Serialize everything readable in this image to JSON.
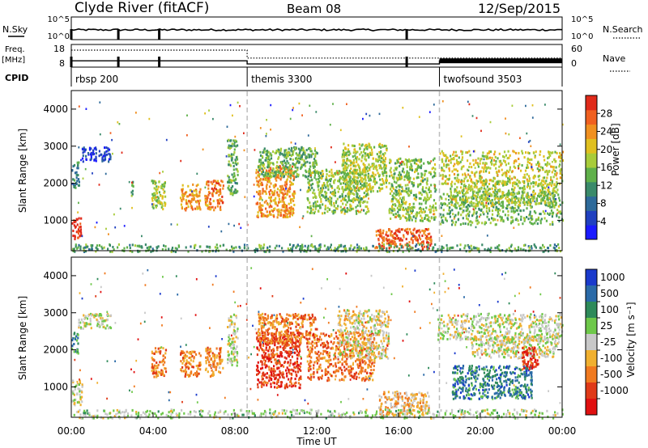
{
  "header": {
    "station": "Clyde River (fitACF)",
    "beam": "Beam 08",
    "date": "12/Sep/2015"
  },
  "chart_data": [
    {
      "type": "line",
      "panel": "noise",
      "labels": {
        "left": "N.Sky",
        "right": "N.Search",
        "left_ticks": [
          "10^5",
          "10^0"
        ],
        "right_ticks": [
          "10^5",
          "10^0"
        ]
      },
      "series": [
        {
          "name": "N.Sky",
          "style": "solid",
          "value": "10^0 – 10^5 (log)"
        },
        {
          "name": "N.Search",
          "style": "dotted"
        }
      ],
      "drops_at_hours": [
        0.0,
        2.3,
        4.3,
        16.4
      ]
    },
    {
      "type": "line",
      "panel": "frequency",
      "labels": {
        "left_top": "Freq.",
        "left_unit": "[MHz]",
        "right": "Nave",
        "left_ticks": [
          18,
          8
        ],
        "right_ticks": [
          60,
          0
        ]
      },
      "series": [
        {
          "name": "Freq.",
          "style": "solid",
          "x_hours": [
            0,
            8.6,
            8.6,
            18.0,
            18.0,
            24
          ],
          "y_mhz": [
            10.8,
            10.8,
            9.4,
            9.4,
            10.8,
            10.8
          ]
        },
        {
          "name": "Nave",
          "style": "dotted",
          "x_hours": [
            0,
            8.6,
            8.6,
            24
          ],
          "y_nave": [
            45,
            45,
            24,
            24
          ]
        }
      ]
    },
    {
      "type": "table",
      "panel": "cpid",
      "label": "CPID",
      "programs": [
        {
          "name": "rbsp 200",
          "start_hours": 0.0,
          "end_hours": 8.6
        },
        {
          "name": "themis 3300",
          "start_hours": 8.6,
          "end_hours": 18.0
        },
        {
          "name": "twofsound 3503",
          "start_hours": 18.0,
          "end_hours": 24.0
        }
      ]
    },
    {
      "type": "heatmap",
      "panel": "power",
      "ylabel": "Slant Range [km]",
      "ylim": [
        180,
        4500
      ],
      "yticks": [
        1000,
        2000,
        3000,
        4000
      ],
      "colorbar": {
        "label": "Power [dB]",
        "range": [
          0,
          32
        ],
        "ticks": [
          4,
          8,
          12,
          16,
          20,
          24,
          28
        ],
        "colors": [
          "#1a1aff",
          "#2040c0",
          "#2e6a9a",
          "#3a8a6a",
          "#5fb04a",
          "#a8cc3a",
          "#e0c020",
          "#f09020",
          "#f06020",
          "#e02a1a"
        ]
      },
      "vertical_marks_hours": [
        8.6,
        18.0
      ],
      "regions": [
        {
          "x": [
            0.0,
            0.45
          ],
          "y": [
            500,
            1100
          ],
          "level": 0.95
        },
        {
          "x": [
            0.5,
            1.9
          ],
          "y": [
            2600,
            3000
          ],
          "level": 0.15
        },
        {
          "x": [
            0.0,
            0.35
          ],
          "y": [
            1900,
            2600
          ],
          "level": 0.3
        },
        {
          "x": [
            2.9,
            3.0
          ],
          "y": [
            1500,
            2100
          ],
          "level": 0.4
        },
        {
          "x": [
            3.9,
            4.6
          ],
          "y": [
            1300,
            2100
          ],
          "level": 0.55
        },
        {
          "x": [
            5.3,
            6.3
          ],
          "y": [
            1300,
            2000
          ],
          "level": 0.75
        },
        {
          "x": [
            6.5,
            7.4
          ],
          "y": [
            1300,
            2100
          ],
          "level": 0.8
        },
        {
          "x": [
            7.6,
            8.1
          ],
          "y": [
            1700,
            3200
          ],
          "level": 0.45
        },
        {
          "x": [
            9.0,
            10.9
          ],
          "y": [
            1100,
            2500
          ],
          "level": 0.75
        },
        {
          "x": [
            9.1,
            12.0
          ],
          "y": [
            2200,
            3000
          ],
          "level": 0.45
        },
        {
          "x": [
            11.5,
            14.5
          ],
          "y": [
            1200,
            2400
          ],
          "level": 0.5
        },
        {
          "x": [
            13.2,
            15.4
          ],
          "y": [
            1800,
            3100
          ],
          "level": 0.55
        },
        {
          "x": [
            14.8,
            17.6
          ],
          "y": [
            250,
            800
          ],
          "level": 0.85
        },
        {
          "x": [
            15.5,
            17.8
          ],
          "y": [
            1000,
            2700
          ],
          "level": 0.5
        },
        {
          "x": [
            18.0,
            24.0
          ],
          "y": [
            2000,
            2900
          ],
          "level": 0.6
        },
        {
          "x": [
            18.0,
            24.0
          ],
          "y": [
            900,
            1800
          ],
          "level": 0.45
        },
        {
          "x": [
            18.5,
            23.8
          ],
          "y": [
            1400,
            2100
          ],
          "level": 0.55
        },
        {
          "x": [
            0.0,
            24.0
          ],
          "y": [
            180,
            380
          ],
          "level": 0.4
        }
      ]
    },
    {
      "type": "heatmap",
      "panel": "velocity",
      "xlabel": "Time UT",
      "ylabel": "Slant Range [km]",
      "ylim": [
        180,
        4500
      ],
      "yticks": [
        1000,
        2000,
        3000,
        4000
      ],
      "xticks": [
        "00:00",
        "04:00",
        "08:00",
        "12:00",
        "16:00",
        "20:00",
        "00:00"
      ],
      "colorbar": {
        "label": "Velocity [m s⁻¹]",
        "levels": [
          "1000",
          "500",
          "100",
          "25",
          "-25",
          "-100",
          "-500",
          "-1000"
        ],
        "colors": [
          "#1a3acc",
          "#2a6aa8",
          "#2e8a5a",
          "#6ec84a",
          "#c8c8c8",
          "#f0b030",
          "#f07a20",
          "#e03a18",
          "#e01010"
        ]
      },
      "vertical_marks_hours": [
        8.6,
        18.0
      ],
      "regions": [
        {
          "x": [
            0.0,
            0.5
          ],
          "y": [
            500,
            1200
          ],
          "level": 0.5
        },
        {
          "x": [
            0.3,
            1.9
          ],
          "y": [
            2600,
            3000
          ],
          "level": 0.5
        },
        {
          "x": [
            0.0,
            0.3
          ],
          "y": [
            1900,
            2500
          ],
          "level": 0.3
        },
        {
          "x": [
            3.9,
            4.6
          ],
          "y": [
            1300,
            2100
          ],
          "level": 0.72
        },
        {
          "x": [
            5.3,
            6.3
          ],
          "y": [
            1300,
            2000
          ],
          "level": 0.7
        },
        {
          "x": [
            6.5,
            7.4
          ],
          "y": [
            1300,
            2100
          ],
          "level": 0.68
        },
        {
          "x": [
            7.6,
            8.1
          ],
          "y": [
            1600,
            3000
          ],
          "level": 0.5
        },
        {
          "x": [
            9.0,
            11.2
          ],
          "y": [
            1000,
            2500
          ],
          "level": 0.86
        },
        {
          "x": [
            9.1,
            12.0
          ],
          "y": [
            2200,
            3000
          ],
          "level": 0.72
        },
        {
          "x": [
            11.5,
            14.8
          ],
          "y": [
            1200,
            2500
          ],
          "level": 0.75
        },
        {
          "x": [
            13.0,
            15.5
          ],
          "y": [
            1800,
            3100
          ],
          "level": 0.55
        },
        {
          "x": [
            15.0,
            17.5
          ],
          "y": [
            250,
            900
          ],
          "level": 0.62
        },
        {
          "x": [
            17.9,
            24.0
          ],
          "y": [
            2300,
            3000
          ],
          "level": 0.5
        },
        {
          "x": [
            19.5,
            23.8
          ],
          "y": [
            1800,
            2400
          ],
          "level": 0.5
        },
        {
          "x": [
            18.6,
            22.5
          ],
          "y": [
            700,
            1600
          ],
          "level": 0.22
        },
        {
          "x": [
            22.0,
            22.8
          ],
          "y": [
            1500,
            2100
          ],
          "level": 0.86
        },
        {
          "x": [
            0.0,
            24.0
          ],
          "y": [
            180,
            420
          ],
          "level": 0.45
        }
      ]
    }
  ]
}
